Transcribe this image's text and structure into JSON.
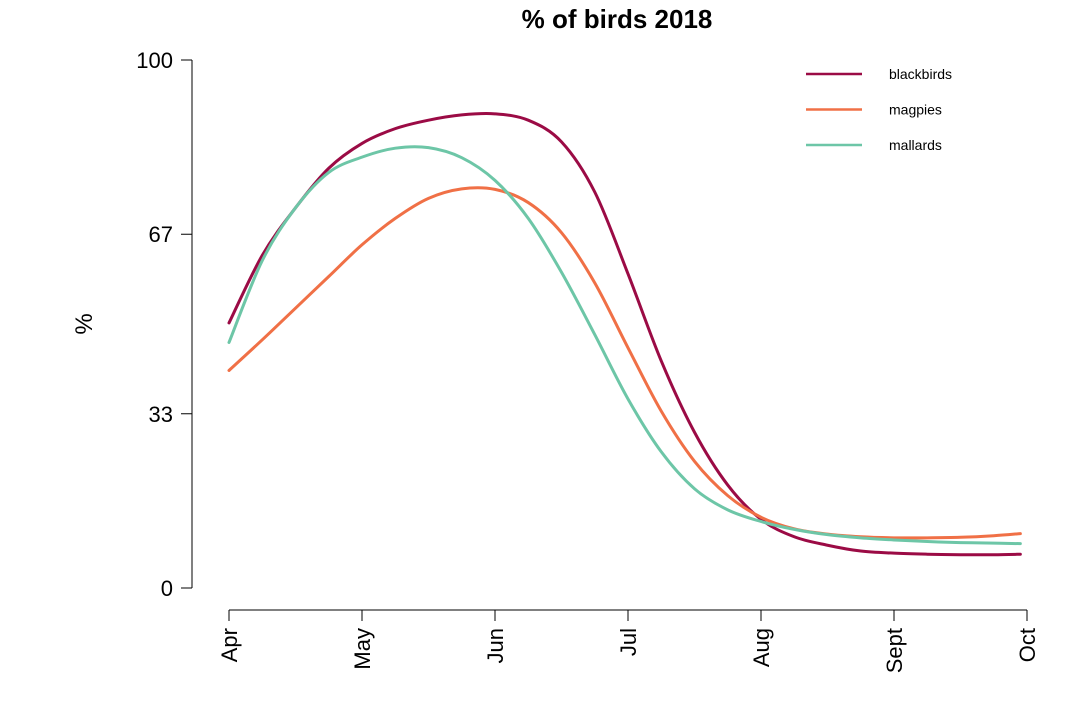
{
  "chart_data": {
    "type": "line",
    "title": "% of birds 2018",
    "xlabel": "",
    "ylabel": "%",
    "x_ticks": [
      "Apr",
      "May",
      "Jun",
      "Jul",
      "Aug",
      "Sept",
      "Oct"
    ],
    "y_ticks": [
      0,
      33,
      67,
      100
    ],
    "ylim": [
      0,
      100
    ],
    "grid": false,
    "legend_position": "top-right",
    "x": [
      0,
      0.25,
      0.5,
      0.75,
      1,
      1.25,
      1.5,
      1.75,
      2,
      2.25,
      2.5,
      2.75,
      3,
      3.25,
      3.5,
      3.75,
      4,
      4.25,
      4.5,
      4.75,
      5,
      5.25,
      5.5,
      5.75,
      5.95
    ],
    "series": [
      {
        "name": "blackbirds",
        "color": "#9B0B45",
        "values": [
          50.2,
          63,
          72,
          79.5,
          84.2,
          87,
          88.6,
          89.6,
          89.8,
          88.6,
          84.5,
          75,
          59.5,
          43,
          29.5,
          19.5,
          13,
          9.7,
          8.1,
          7,
          6.6,
          6.4,
          6.3,
          6.3,
          6.4
        ]
      },
      {
        "name": "magpies",
        "color": "#F07046",
        "values": [
          41.2,
          47,
          53,
          59,
          65,
          70,
          73.8,
          75.6,
          75.5,
          73,
          67.3,
          57.8,
          45.5,
          33.5,
          24,
          17.5,
          13.4,
          11.2,
          10.2,
          9.7,
          9.5,
          9.5,
          9.6,
          9.9,
          10.3
        ]
      },
      {
        "name": "mallards",
        "color": "#6DC6A7",
        "values": [
          46.5,
          62,
          72,
          78.7,
          81.6,
          83.3,
          83.4,
          81.5,
          77.2,
          70,
          59.8,
          48,
          35.8,
          25.8,
          18.8,
          14.8,
          12.6,
          11.1,
          10.1,
          9.5,
          9.1,
          8.8,
          8.6,
          8.5,
          8.4
        ]
      }
    ]
  }
}
